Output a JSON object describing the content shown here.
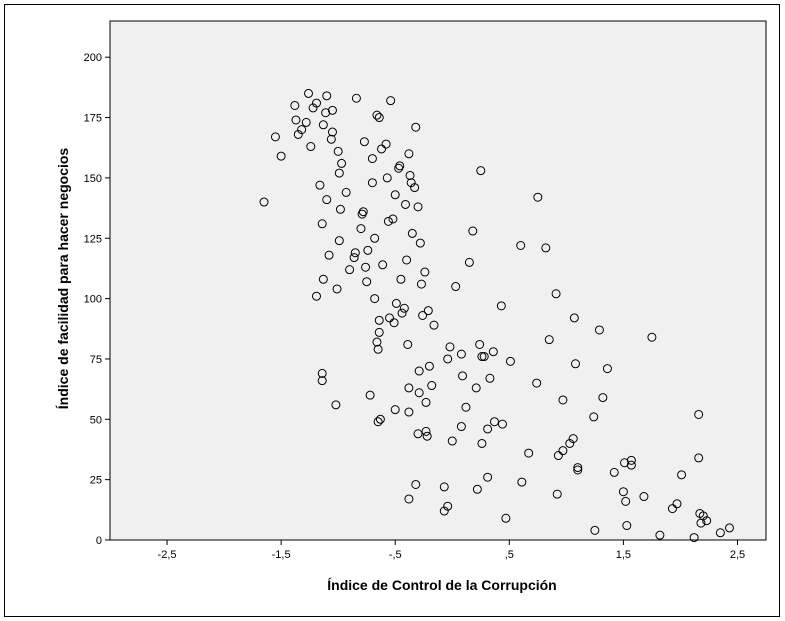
{
  "chart_data": {
    "type": "scatter",
    "title": "",
    "xlabel": "Índice de Control de la Corrupción",
    "ylabel": "Índice de facilidad para hacer negocios",
    "xlim": [
      -3.0,
      2.75
    ],
    "ylim": [
      0,
      215
    ],
    "xticks": [
      -2.5,
      -1.5,
      -0.5,
      0.5,
      1.5,
      2.5
    ],
    "xtick_labels": [
      "-2,5",
      "-1,5",
      "-,5",
      ",5",
      "1,5",
      "2,5"
    ],
    "yticks": [
      0,
      25,
      50,
      75,
      100,
      125,
      150,
      175,
      200
    ],
    "ytick_labels": [
      "0",
      "25",
      "50",
      "75",
      "100",
      "125",
      "150",
      "175",
      "200"
    ],
    "grid": false,
    "legend": "none",
    "colors": {
      "plot_bg": "#f0f0f0",
      "marker_stroke": "#000000",
      "frame": "#000000"
    },
    "points": [
      [
        -1.65,
        140
      ],
      [
        -1.55,
        167
      ],
      [
        -1.5,
        159
      ],
      [
        -1.38,
        180
      ],
      [
        -1.37,
        174
      ],
      [
        -1.35,
        168
      ],
      [
        -1.32,
        170
      ],
      [
        -1.28,
        173
      ],
      [
        -1.26,
        185
      ],
      [
        -1.24,
        163
      ],
      [
        -1.22,
        179
      ],
      [
        -1.19,
        181
      ],
      [
        -1.16,
        147
      ],
      [
        -1.14,
        131
      ],
      [
        -1.13,
        172
      ],
      [
        -1.11,
        177
      ],
      [
        -1.1,
        184
      ],
      [
        -1.1,
        141
      ],
      [
        -1.08,
        118
      ],
      [
        -1.06,
        166
      ],
      [
        -1.05,
        178
      ],
      [
        -1.05,
        169
      ],
      [
        -1.19,
        101
      ],
      [
        -1.13,
        108
      ],
      [
        -1.14,
        69
      ],
      [
        -1.14,
        66
      ],
      [
        -1.02,
        56
      ],
      [
        -1.0,
        161
      ],
      [
        -0.99,
        152
      ],
      [
        -0.97,
        156
      ],
      [
        -0.99,
        124
      ],
      [
        -0.98,
        137
      ],
      [
        -1.01,
        104
      ],
      [
        -0.93,
        144
      ],
      [
        -0.9,
        112
      ],
      [
        -0.86,
        117
      ],
      [
        -0.85,
        119
      ],
      [
        -0.8,
        129
      ],
      [
        -0.79,
        135
      ],
      [
        -0.78,
        136
      ],
      [
        -0.76,
        113
      ],
      [
        -0.75,
        107
      ],
      [
        -0.77,
        165
      ],
      [
        -0.74,
        120
      ],
      [
        -0.72,
        60
      ],
      [
        -0.7,
        158
      ],
      [
        -0.7,
        148
      ],
      [
        -0.68,
        125
      ],
      [
        -0.68,
        100
      ],
      [
        -0.84,
        183
      ],
      [
        -0.66,
        176
      ],
      [
        -0.64,
        175
      ],
      [
        -0.62,
        162
      ],
      [
        -0.61,
        114
      ],
      [
        -0.58,
        164
      ],
      [
        -0.57,
        150
      ],
      [
        -0.56,
        132
      ],
      [
        -0.54,
        182
      ],
      [
        -0.52,
        133
      ],
      [
        -0.51,
        90
      ],
      [
        -0.5,
        143
      ],
      [
        -0.49,
        98
      ],
      [
        -0.47,
        154
      ],
      [
        -0.46,
        155
      ],
      [
        -0.45,
        108
      ],
      [
        -0.44,
        94
      ],
      [
        -0.42,
        96
      ],
      [
        -0.41,
        139
      ],
      [
        -0.4,
        116
      ],
      [
        -0.39,
        81
      ],
      [
        -0.38,
        160
      ],
      [
        -0.37,
        151
      ],
      [
        -0.36,
        148
      ],
      [
        -0.35,
        127
      ],
      [
        -0.33,
        146
      ],
      [
        -0.32,
        171
      ],
      [
        -0.3,
        138
      ],
      [
        -0.29,
        70
      ],
      [
        -0.29,
        61
      ],
      [
        -0.28,
        123
      ],
      [
        -0.27,
        106
      ],
      [
        -0.26,
        93
      ],
      [
        -0.24,
        111
      ],
      [
        -0.23,
        57
      ],
      [
        -0.23,
        45
      ],
      [
        -0.22,
        43
      ],
      [
        -0.21,
        95
      ],
      [
        -0.2,
        72
      ],
      [
        -0.18,
        64
      ],
      [
        -0.16,
        89
      ],
      [
        -0.66,
        82
      ],
      [
        -0.65,
        79
      ],
      [
        -0.64,
        86
      ],
      [
        -0.64,
        91
      ],
      [
        -0.63,
        50
      ],
      [
        -0.55,
        92
      ],
      [
        -0.5,
        54
      ],
      [
        -0.38,
        63
      ],
      [
        -0.38,
        53
      ],
      [
        -0.32,
        23
      ],
      [
        -0.3,
        44
      ],
      [
        -0.38,
        17
      ],
      [
        -0.65,
        49
      ],
      [
        -0.04,
        75
      ],
      [
        -0.02,
        80
      ],
      [
        0.0,
        41
      ],
      [
        0.03,
        105
      ],
      [
        0.08,
        47
      ],
      [
        0.09,
        68
      ],
      [
        0.12,
        55
      ],
      [
        0.15,
        115
      ],
      [
        0.18,
        128
      ],
      [
        0.21,
        63
      ],
      [
        0.24,
        81
      ],
      [
        0.25,
        153
      ],
      [
        0.26,
        76
      ],
      [
        0.28,
        76
      ],
      [
        0.31,
        46
      ],
      [
        0.33,
        67
      ],
      [
        0.36,
        78
      ],
      [
        0.37,
        49
      ],
      [
        0.43,
        97
      ],
      [
        0.44,
        48
      ],
      [
        0.26,
        40
      ],
      [
        0.22,
        21
      ],
      [
        0.31,
        26
      ],
      [
        0.08,
        77
      ],
      [
        -0.07,
        22
      ],
      [
        -0.07,
        12
      ],
      [
        -0.04,
        14
      ],
      [
        0.47,
        9
      ],
      [
        0.51,
        74
      ],
      [
        0.61,
        24
      ],
      [
        0.67,
        36
      ],
      [
        0.74,
        65
      ],
      [
        0.6,
        122
      ],
      [
        0.75,
        142
      ],
      [
        0.82,
        121
      ],
      [
        0.85,
        83
      ],
      [
        0.91,
        102
      ],
      [
        0.92,
        19
      ],
      [
        0.93,
        35
      ],
      [
        0.97,
        58
      ],
      [
        0.97,
        37
      ],
      [
        1.03,
        40
      ],
      [
        1.06,
        42
      ],
      [
        1.07,
        92
      ],
      [
        1.08,
        73
      ],
      [
        1.1,
        30
      ],
      [
        1.1,
        29
      ],
      [
        1.24,
        51
      ],
      [
        1.29,
        87
      ],
      [
        1.32,
        59
      ],
      [
        1.36,
        71
      ],
      [
        1.42,
        28
      ],
      [
        1.5,
        20
      ],
      [
        1.51,
        32
      ],
      [
        1.52,
        16
      ],
      [
        1.53,
        6
      ],
      [
        1.57,
        33
      ],
      [
        1.57,
        31
      ],
      [
        1.68,
        18
      ],
      [
        1.75,
        84
      ],
      [
        1.82,
        2
      ],
      [
        1.93,
        13
      ],
      [
        1.97,
        15
      ],
      [
        2.01,
        27
      ],
      [
        2.12,
        1
      ],
      [
        2.16,
        52
      ],
      [
        2.16,
        34
      ],
      [
        2.17,
        11
      ],
      [
        2.18,
        7
      ],
      [
        2.2,
        10
      ],
      [
        2.23,
        8
      ],
      [
        2.35,
        3
      ],
      [
        2.43,
        5
      ],
      [
        1.25,
        4
      ]
    ]
  }
}
